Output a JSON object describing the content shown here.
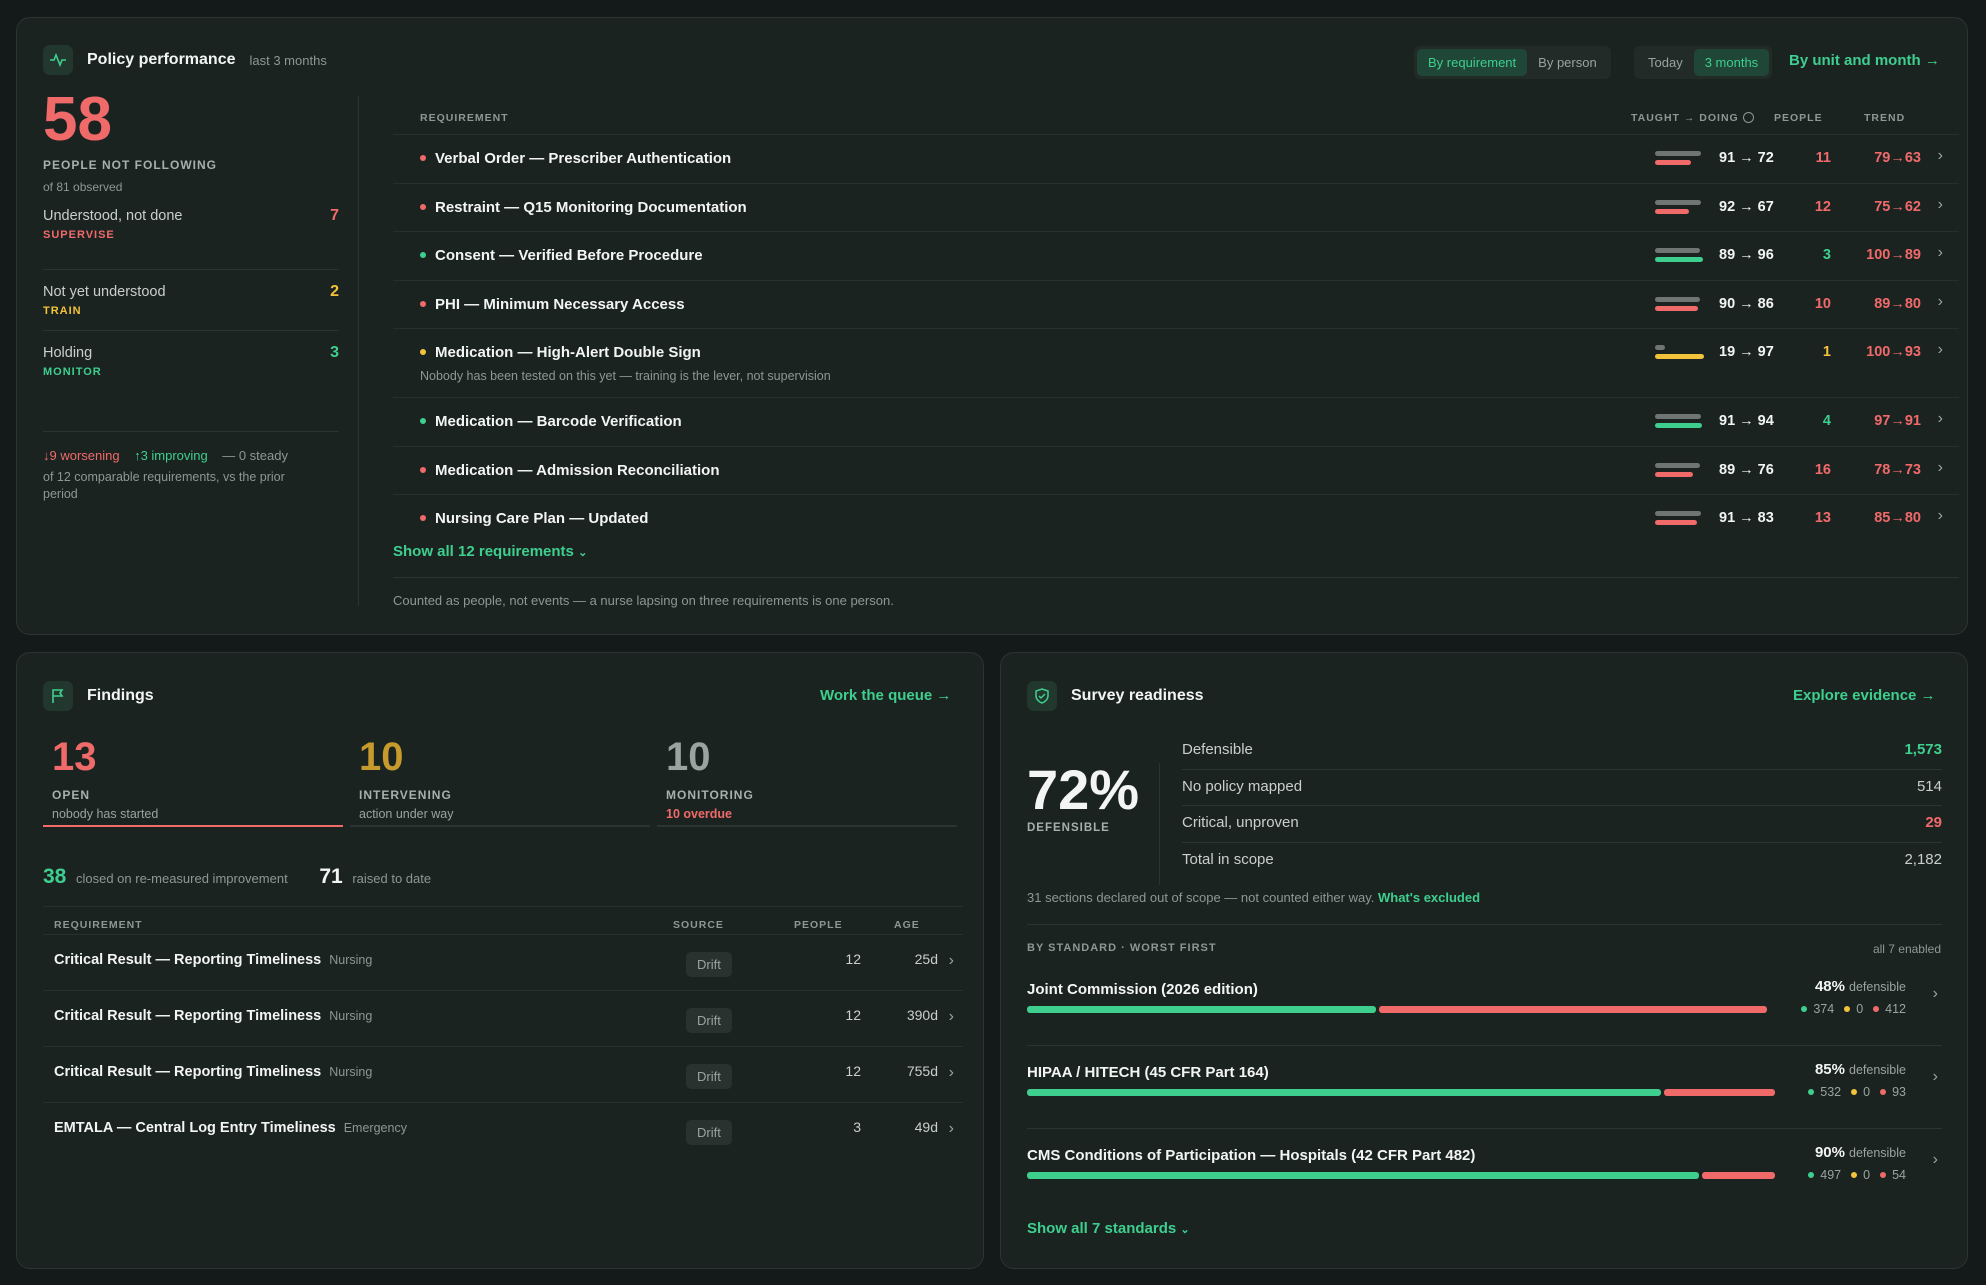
{
  "policy": {
    "title": "Policy performance",
    "period": "last 3 months",
    "toggle_view": [
      "By requirement",
      "By person"
    ],
    "toggle_time": [
      "Today",
      "3 months"
    ],
    "link": "By unit and month →",
    "big_number": "58",
    "big_label": "PEOPLE NOT FOLLOWING",
    "big_sub": "of 81 observed",
    "buckets": [
      {
        "label": "Understood, not done",
        "tag": "SUPERVISE",
        "value": "7",
        "color": "#f06a6a"
      },
      {
        "label": "Not yet understood",
        "tag": "TRAIN",
        "value": "2",
        "color": "#f2c33b"
      },
      {
        "label": "Holding",
        "tag": "MONITOR",
        "value": "3",
        "color": "#3ecf8e"
      }
    ],
    "trend_worse": "↓9 worsening",
    "trend_better": "↑3 improving",
    "trend_steady": "— 0 steady",
    "trend_note": "of 12 comparable requirements, vs the prior period",
    "headers": {
      "req": "REQUIREMENT",
      "taught": "TAUGHT → DOING",
      "people": "PEOPLE",
      "trend": "TREND"
    },
    "rows": [
      {
        "name": "Verbal Order — Prescriber Authentication",
        "td": "91 → 72",
        "people": "11",
        "trend": "79→63",
        "dot": "#f06a6a",
        "taught": 91,
        "doing": 72,
        "color": "#f06a6a"
      },
      {
        "name": "Restraint — Q15 Monitoring Documentation",
        "td": "92 → 67",
        "people": "12",
        "trend": "75→62",
        "dot": "#f06a6a",
        "taught": 92,
        "doing": 67,
        "color": "#f06a6a"
      },
      {
        "name": "Consent — Verified Before Procedure",
        "td": "89 → 96",
        "people": "3",
        "trend": "100→89",
        "dot": "#3ecf8e",
        "taught": 89,
        "doing": 96,
        "color": "#3ecf8e"
      },
      {
        "name": "PHI — Minimum Necessary Access",
        "td": "90 → 86",
        "people": "10",
        "trend": "89→80",
        "dot": "#f06a6a",
        "taught": 90,
        "doing": 86,
        "color": "#f06a6a"
      },
      {
        "name": "Medication — High-Alert Double Sign",
        "sub": "Nobody has been tested on this yet — training is the lever, not supervision",
        "td": "19 → 97",
        "people": "1",
        "trend": "100→93",
        "dot": "#f2c33b",
        "taught": 19,
        "doing": 97,
        "color": "#f2c33b"
      },
      {
        "name": "Medication — Barcode Verification",
        "td": "91 → 94",
        "people": "4",
        "trend": "97→91",
        "dot": "#3ecf8e",
        "taught": 91,
        "doing": 94,
        "color": "#3ecf8e"
      },
      {
        "name": "Medication — Admission Reconciliation",
        "td": "89 → 76",
        "people": "16",
        "trend": "78→73",
        "dot": "#f06a6a",
        "taught": 89,
        "doing": 76,
        "color": "#f06a6a"
      },
      {
        "name": "Nursing Care Plan — Updated",
        "td": "91 → 83",
        "people": "13",
        "trend": "85→80",
        "dot": "#f06a6a",
        "taught": 91,
        "doing": 83,
        "color": "#f06a6a"
      }
    ],
    "show_all": "Show all 12 requirements",
    "footnote": "Counted as people, not events — a nurse lapsing on three requirements is one person."
  },
  "findings": {
    "title": "Findings",
    "link": "Work the queue →",
    "stats": [
      {
        "value": "13",
        "label": "OPEN",
        "sub": "nobody has started",
        "color": "#f06a6a",
        "subcolor": "#9aa3a0"
      },
      {
        "value": "10",
        "label": "INTERVENING",
        "sub": "action under way",
        "color": "#c69a2c",
        "subcolor": "#9aa3a0"
      },
      {
        "value": "10",
        "label": "MONITORING",
        "sub": "10 overdue",
        "color": "#9aa3a0",
        "subcolor": "#f06a6a"
      }
    ],
    "closed_n": "38",
    "closed_t": "closed on re-measured improvement",
    "raised_n": "71",
    "raised_t": "raised to date",
    "headers": {
      "req": "REQUIREMENT",
      "source": "SOURCE",
      "people": "PEOPLE",
      "age": "AGE"
    },
    "rows": [
      {
        "name": "Critical Result — Reporting Timeliness",
        "unit": "Nursing",
        "source": "Drift",
        "people": "12",
        "age": "25d"
      },
      {
        "name": "Critical Result — Reporting Timeliness",
        "unit": "Nursing",
        "source": "Drift",
        "people": "12",
        "age": "390d"
      },
      {
        "name": "Critical Result — Reporting Timeliness",
        "unit": "Nursing",
        "source": "Drift",
        "people": "12",
        "age": "755d"
      },
      {
        "name": "EMTALA — Central Log Entry Timeliness",
        "unit": "Emergency",
        "source": "Drift",
        "people": "3",
        "age": "49d"
      }
    ]
  },
  "survey": {
    "title": "Survey readiness",
    "link": "Explore evidence →",
    "big": "72%",
    "big_label": "DEFENSIBLE",
    "metrics": [
      {
        "label": "Defensible",
        "value": "1,573",
        "color": "#3ecf8e"
      },
      {
        "label": "No policy mapped",
        "value": "514",
        "color": "#c8cfcc"
      },
      {
        "label": "Critical, unproven",
        "value": "29",
        "color": "#f06a6a"
      },
      {
        "label": "Total in scope",
        "value": "2,182",
        "color": "#c8cfcc"
      }
    ],
    "note": "31 sections declared out of scope — not counted either way.",
    "note_link": "What's excluded",
    "std_header": "BY STANDARD · WORST FIRST",
    "std_right": "all 7 enabled",
    "standards": [
      {
        "name": "Joint Commission (2026 edition)",
        "pct": "48%",
        "pct_label": "defensible",
        "g": "374",
        "y": "0",
        "r": "412",
        "gn": 374,
        "rn": 412
      },
      {
        "name": "HIPAA / HITECH (45 CFR Part 164)",
        "pct": "85%",
        "pct_label": "defensible",
        "g": "532",
        "y": "0",
        "r": "93",
        "gn": 532,
        "rn": 93
      },
      {
        "name": "CMS Conditions of Participation — Hospitals (42 CFR Part 482)",
        "pct": "90%",
        "pct_label": "defensible",
        "g": "497",
        "y": "0",
        "r": "54",
        "gn": 497,
        "rn": 54
      }
    ],
    "show_all": "Show all 7 standards"
  }
}
